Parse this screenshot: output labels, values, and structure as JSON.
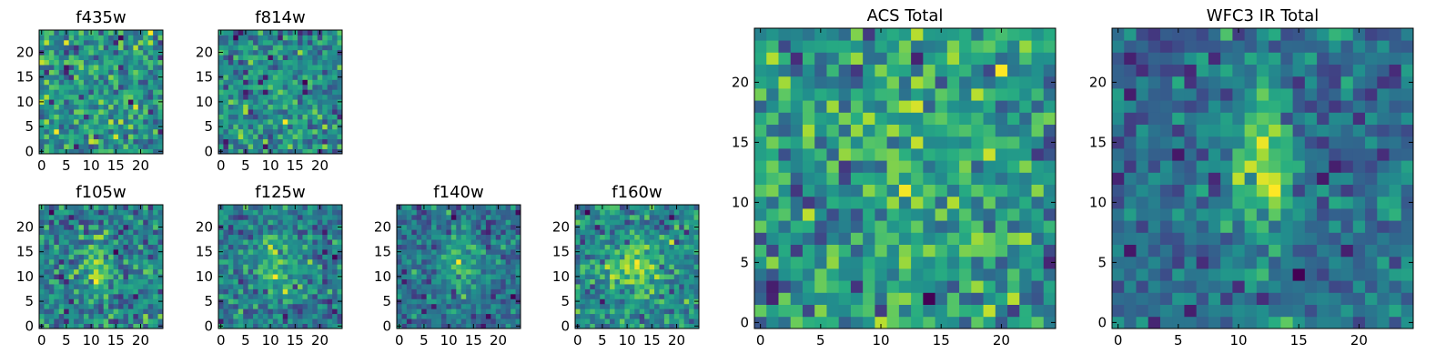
{
  "chart_data": [
    {
      "type": "heatmap",
      "title": "f435w",
      "grid_size": 25,
      "xlim": [
        0,
        24
      ],
      "ylim": [
        0,
        24
      ],
      "xticks": [
        0,
        5,
        10,
        15,
        20
      ],
      "yticks": [
        0,
        5,
        10,
        15,
        20
      ],
      "colormap": "viridis",
      "noise_level": 0.95,
      "source_strength": 0.15,
      "source_center": [
        12,
        12
      ],
      "source_sigma": [
        2,
        5
      ],
      "seed": 11
    },
    {
      "type": "heatmap",
      "title": "f814w",
      "grid_size": 25,
      "xlim": [
        0,
        24
      ],
      "ylim": [
        0,
        24
      ],
      "xticks": [
        0,
        5,
        10,
        15,
        20
      ],
      "yticks": [
        0,
        5,
        10,
        15,
        20
      ],
      "colormap": "viridis",
      "noise_level": 0.9,
      "source_strength": 0.3,
      "source_center": [
        12,
        12
      ],
      "source_sigma": [
        1.8,
        5
      ],
      "seed": 23
    },
    {
      "type": "heatmap",
      "title": "f105w",
      "grid_size": 25,
      "xlim": [
        0,
        24
      ],
      "ylim": [
        0,
        24
      ],
      "xticks": [
        0,
        5,
        10,
        15,
        20
      ],
      "yticks": [
        0,
        5,
        10,
        15,
        20
      ],
      "colormap": "viridis",
      "noise_level": 0.65,
      "source_strength": 0.55,
      "source_center": [
        11.5,
        11.5
      ],
      "source_sigma": [
        2,
        4
      ],
      "seed": 37
    },
    {
      "type": "heatmap",
      "title": "f125w",
      "grid_size": 25,
      "xlim": [
        0,
        24
      ],
      "ylim": [
        0,
        24
      ],
      "xticks": [
        0,
        5,
        10,
        15,
        20
      ],
      "yticks": [
        0,
        5,
        10,
        15,
        20
      ],
      "colormap": "viridis",
      "noise_level": 0.65,
      "source_strength": 0.65,
      "source_center": [
        12,
        12
      ],
      "source_sigma": [
        3,
        4.5
      ],
      "seed": 41
    },
    {
      "type": "heatmap",
      "title": "f140w",
      "grid_size": 25,
      "xlim": [
        0,
        24
      ],
      "ylim": [
        0,
        24
      ],
      "xticks": [
        0,
        5,
        10,
        15,
        20
      ],
      "yticks": [
        0,
        5,
        10,
        15,
        20
      ],
      "colormap": "viridis",
      "noise_level": 0.6,
      "source_strength": 0.7,
      "source_center": [
        12.5,
        13
      ],
      "source_sigma": [
        2.5,
        4.5
      ],
      "seed": 53
    },
    {
      "type": "heatmap",
      "title": "f160w",
      "grid_size": 25,
      "xlim": [
        0,
        24
      ],
      "ylim": [
        0,
        24
      ],
      "xticks": [
        0,
        5,
        10,
        15,
        20
      ],
      "yticks": [
        0,
        5,
        10,
        15,
        20
      ],
      "colormap": "viridis",
      "noise_level": 0.55,
      "source_strength": 0.7,
      "source_center": [
        11.5,
        12
      ],
      "source_sigma": [
        3,
        3.5
      ],
      "seed": 67
    },
    {
      "type": "heatmap",
      "title": "ACS Total",
      "grid_size": 25,
      "xlim": [
        0,
        24
      ],
      "ylim": [
        0,
        24
      ],
      "xticks": [
        0,
        5,
        10,
        15,
        20
      ],
      "yticks": [
        0,
        5,
        10,
        15,
        20
      ],
      "colormap": "viridis",
      "noise_level": 0.75,
      "source_strength": 0.45,
      "source_center": [
        12,
        12.5
      ],
      "source_sigma": [
        1.6,
        5
      ],
      "seed": 79
    },
    {
      "type": "heatmap",
      "title": "WFC3 IR Total",
      "grid_size": 25,
      "xlim": [
        0,
        24
      ],
      "ylim": [
        0,
        24
      ],
      "xticks": [
        0,
        5,
        10,
        15,
        20
      ],
      "yticks": [
        0,
        5,
        10,
        15,
        20
      ],
      "colormap": "viridis",
      "noise_level": 0.5,
      "source_strength": 0.9,
      "source_center": [
        12,
        13
      ],
      "source_sigma": [
        1.8,
        5
      ],
      "seed": 97
    }
  ]
}
